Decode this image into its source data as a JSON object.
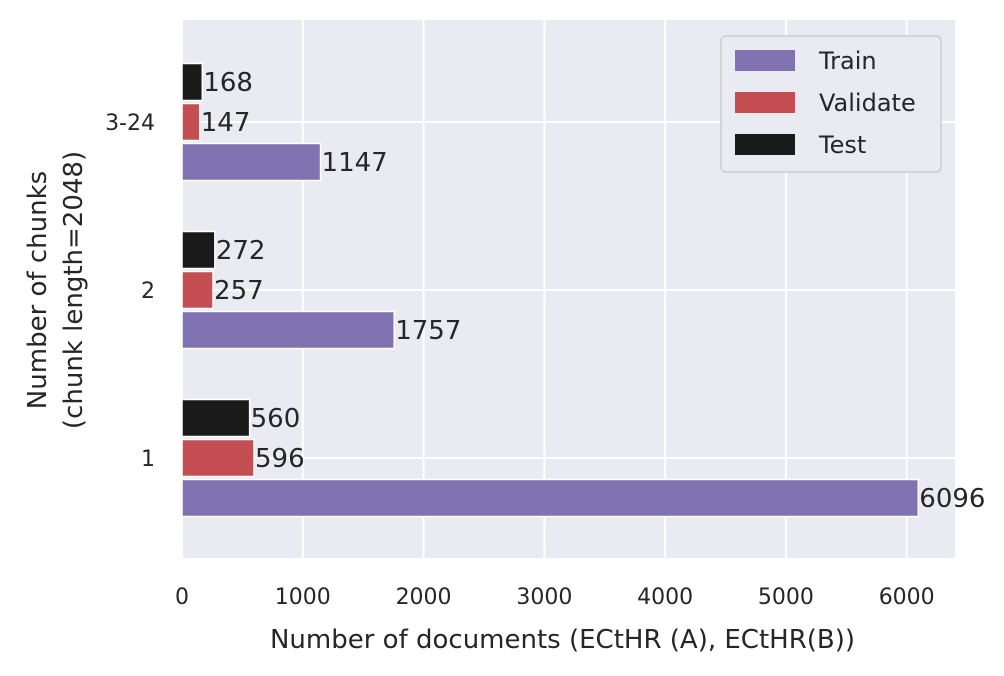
{
  "chart_data": {
    "type": "bar",
    "orientation": "horizontal",
    "categories": [
      "1",
      "2",
      "3-24"
    ],
    "series": [
      {
        "name": "Train",
        "values": [
          6096,
          1757,
          1147
        ],
        "color": "#8172b2"
      },
      {
        "name": "Validate",
        "values": [
          596,
          257,
          147
        ],
        "color": "#c44e52"
      },
      {
        "name": "Test",
        "values": [
          560,
          272,
          168
        ],
        "color": "#1a1a1a"
      }
    ],
    "title": "",
    "xlabel": "Number of documents (ECtHR (A), ECtHR(B))",
    "ylabel_lines": [
      "Number of chunks",
      "(chunk length=2048)"
    ],
    "xlim": [
      0,
      6400
    ],
    "xticks": [
      0,
      1000,
      2000,
      3000,
      4000,
      5000,
      6000
    ],
    "grid": true,
    "legend_position": "top-right",
    "background_color": "#eaeaf2",
    "grid_color": "#ffffff"
  }
}
